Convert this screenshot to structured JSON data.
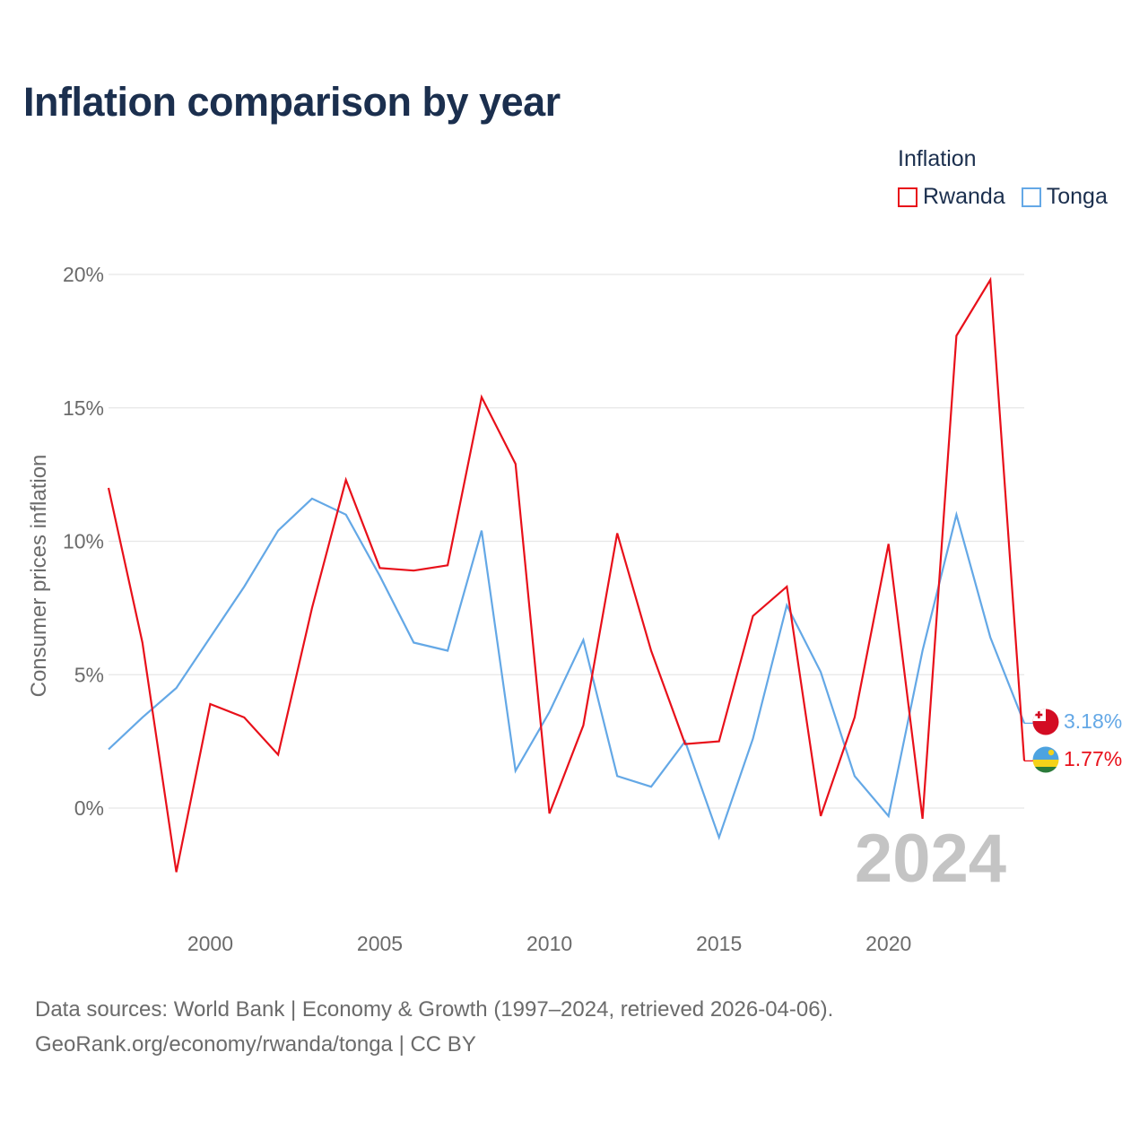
{
  "title": "Inflation comparison by year",
  "legend": {
    "title": "Inflation",
    "items": [
      {
        "name": "Rwanda",
        "color": "#e8101a"
      },
      {
        "name": "Tonga",
        "color": "#64a8e6"
      }
    ]
  },
  "footer": {
    "line1": "Data sources: World Bank | Economy & Growth (1997–2024, retrieved 2026-04-06).",
    "line2": "GeoRank.org/economy/rwanda/tonga | CC BY"
  },
  "chart_data": {
    "type": "line",
    "title": "Inflation comparison by year",
    "ylabel": "Consumer prices inflation",
    "xlabel": "",
    "year_watermark": "2024",
    "x": [
      1997,
      1998,
      1999,
      2000,
      2001,
      2002,
      2003,
      2004,
      2005,
      2006,
      2007,
      2008,
      2009,
      2010,
      2011,
      2012,
      2013,
      2014,
      2015,
      2016,
      2017,
      2018,
      2019,
      2020,
      2021,
      2022,
      2023,
      2024
    ],
    "xlim": [
      1997,
      2024
    ],
    "ylim": [
      -3.5,
      21
    ],
    "x_ticks": [
      2000,
      2005,
      2010,
      2015,
      2020
    ],
    "x_tick_labels": [
      "2000",
      "2005",
      "2010",
      "2015",
      "2020"
    ],
    "y_ticks": [
      0,
      5,
      10,
      15,
      20
    ],
    "y_tick_labels": [
      "0%",
      "5%",
      "10%",
      "15%",
      "20%"
    ],
    "grid": true,
    "series": [
      {
        "name": "Rwanda",
        "color": "#e8101a",
        "values": [
          12.0,
          6.2,
          -2.4,
          3.9,
          3.4,
          2.0,
          7.5,
          12.3,
          9.0,
          8.9,
          9.1,
          15.4,
          12.9,
          -0.2,
          3.1,
          10.3,
          5.9,
          2.4,
          2.5,
          7.2,
          8.3,
          -0.3,
          3.4,
          9.9,
          -0.4,
          17.7,
          19.8,
          1.77
        ],
        "end_label": "1.77%"
      },
      {
        "name": "Tonga",
        "color": "#64a8e6",
        "values": [
          2.2,
          3.4,
          4.5,
          6.4,
          8.3,
          10.4,
          11.6,
          11.0,
          8.7,
          6.2,
          5.9,
          10.4,
          1.4,
          3.6,
          6.3,
          1.2,
          0.8,
          2.5,
          -1.1,
          2.6,
          7.6,
          5.1,
          1.2,
          -0.3,
          5.9,
          11.0,
          6.4,
          3.18
        ],
        "end_label": "3.18%"
      }
    ]
  }
}
